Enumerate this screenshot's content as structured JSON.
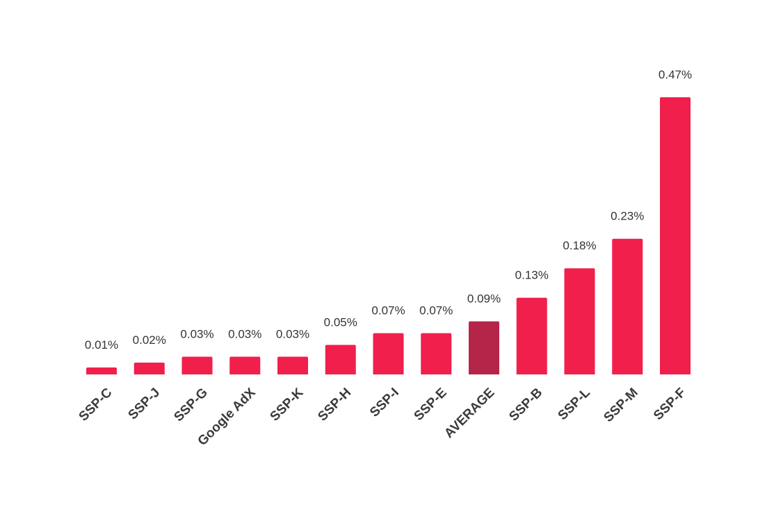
{
  "chart_data": {
    "type": "bar",
    "title": "",
    "xlabel": "",
    "ylabel": "",
    "categories": [
      "SSP-C",
      "SSP-J",
      "SSP-G",
      "Google AdX",
      "SSP-K",
      "SSP-H",
      "SSP-I",
      "SSP-E",
      "AVERAGE",
      "SSP-B",
      "SSP-L",
      "SSP-M",
      "SSP-F"
    ],
    "values": [
      0.01,
      0.02,
      0.03,
      0.03,
      0.03,
      0.05,
      0.07,
      0.07,
      0.09,
      0.13,
      0.18,
      0.23,
      0.47
    ],
    "value_labels": [
      "0.01%",
      "0.02%",
      "0.03%",
      "0.03%",
      "0.03%",
      "0.05%",
      "0.07%",
      "0.07%",
      "0.09%",
      "0.13%",
      "0.18%",
      "0.23%",
      "0.47%"
    ],
    "ylim": [
      0,
      0.5
    ],
    "grid": false,
    "legend": "none",
    "colors": {
      "bar": "#f01f4c",
      "highlight": "#b5254a",
      "highlight_category": "AVERAGE",
      "label": "#333333"
    }
  }
}
